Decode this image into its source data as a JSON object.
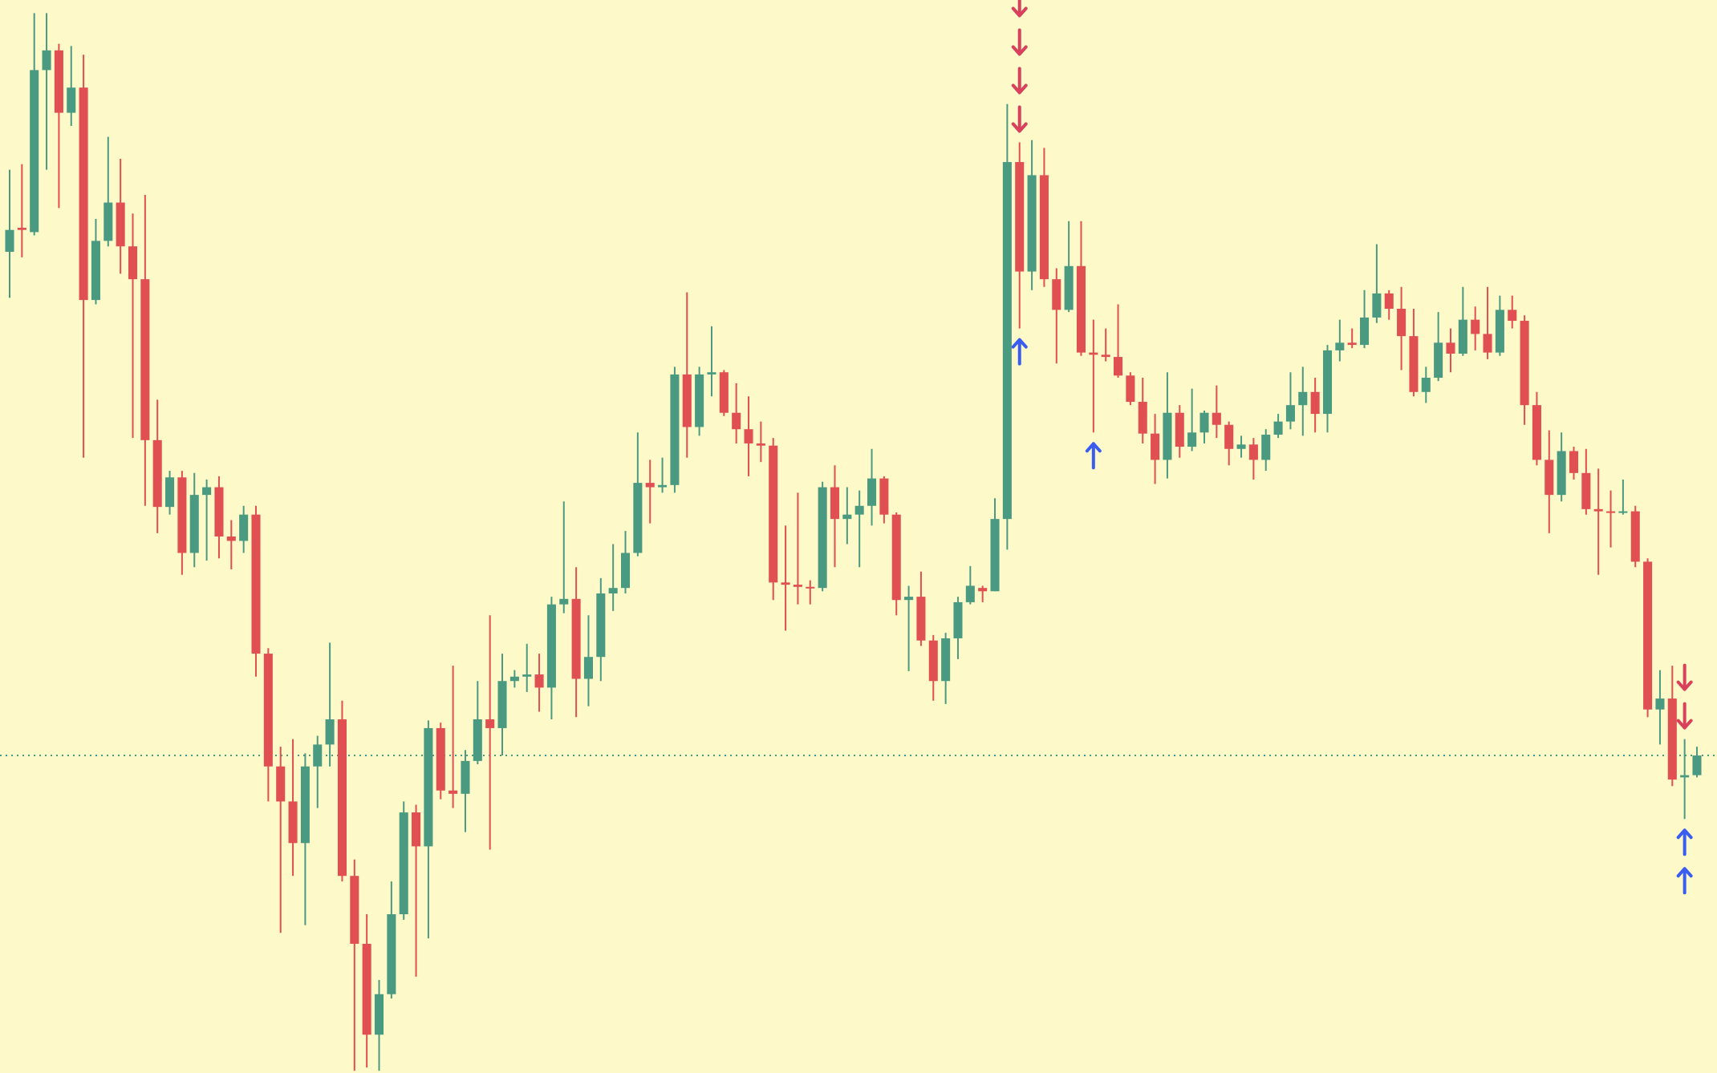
{
  "chart_data": {
    "type": "candlestick",
    "ylim": [
      0,
      980
    ],
    "up_color": "#4a9a82",
    "down_color": "#e04f52",
    "background": "#fdf9c8",
    "price_line": 290,
    "price_line_color": "#4a9a82",
    "open": [
      750,
      772,
      768,
      916,
      934,
      877,
      900,
      706,
      760,
      795,
      755,
      725,
      578,
      517,
      544,
      475,
      528,
      535,
      490,
      486,
      510,
      383,
      280,
      248,
      210,
      280,
      300,
      323,
      180,
      118,
      35,
      72,
      145,
      238,
      207,
      315,
      258,
      255,
      285,
      323,
      315,
      358,
      362,
      364,
      352,
      428,
      433,
      360,
      380,
      438,
      443,
      475,
      539,
      535,
      537,
      638,
      590,
      638,
      640,
      603,
      588,
      575,
      573,
      448,
      446,
      444,
      443,
      535,
      506,
      510,
      518,
      543,
      510,
      432,
      435,
      395,
      358,
      397,
      430,
      443,
      440,
      506,
      832,
      732,
      820,
      725,
      697,
      737,
      658,
      656,
      654,
      637,
      613,
      584,
      560,
      603,
      572,
      585,
      603,
      592,
      570,
      574,
      560,
      583,
      595,
      610,
      622,
      602,
      660,
      667,
      665,
      690,
      712,
      698,
      673,
      622,
      635,
      667,
      657,
      688,
      675,
      658,
      697,
      687,
      610,
      560,
      528,
      568,
      548,
      515,
      513,
      512,
      513,
      467,
      332,
      342,
      270,
      272
    ],
    "high": [
      825,
      830,
      968,
      968,
      940,
      938,
      930,
      780,
      855,
      835,
      785,
      802,
      615,
      550,
      550,
      548,
      542,
      545,
      505,
      518,
      518,
      388,
      298,
      305,
      292,
      308,
      393,
      340,
      195,
      145,
      85,
      175,
      248,
      245,
      322,
      320,
      372,
      295,
      358,
      418,
      383,
      368,
      392,
      383,
      435,
      522,
      462,
      418,
      452,
      483,
      495,
      585,
      560,
      562,
      645,
      713,
      645,
      682,
      642,
      630,
      618,
      595,
      580,
      500,
      530,
      450,
      540,
      555,
      535,
      532,
      570,
      545,
      512,
      445,
      458,
      400,
      402,
      435,
      463,
      445,
      525,
      885,
      850,
      852,
      845,
      735,
      778,
      778,
      688,
      680,
      702,
      640,
      635,
      602,
      640,
      610,
      625,
      605,
      628,
      595,
      582,
      580,
      588,
      602,
      640,
      645,
      635,
      665,
      688,
      680,
      715,
      757,
      715,
      718,
      698,
      645,
      695,
      680,
      718,
      700,
      718,
      710,
      710,
      692,
      622,
      587,
      585,
      572,
      570,
      552,
      532,
      542,
      518,
      470,
      368,
      372,
      305,
      298
    ],
    "low": [
      708,
      745,
      765,
      825,
      790,
      865,
      562,
      702,
      755,
      730,
      580,
      518,
      493,
      510,
      455,
      462,
      468,
      470,
      460,
      475,
      362,
      248,
      128,
      180,
      135,
      242,
      280,
      175,
      2,
      5,
      2,
      68,
      140,
      88,
      123,
      250,
      242,
      220,
      282,
      204,
      290,
      352,
      348,
      330,
      323,
      420,
      325,
      335,
      358,
      422,
      438,
      472,
      502,
      530,
      530,
      562,
      582,
      618,
      600,
      575,
      545,
      558,
      432,
      404,
      428,
      428,
      440,
      462,
      483,
      462,
      500,
      502,
      418,
      367,
      390,
      340,
      337,
      378,
      428,
      430,
      440,
      478,
      680,
      715,
      718,
      648,
      695,
      655,
      585,
      650,
      635,
      610,
      575,
      538,
      543,
      562,
      568,
      575,
      580,
      555,
      562,
      542,
      550,
      580,
      588,
      582,
      585,
      585,
      650,
      662,
      662,
      685,
      688,
      642,
      618,
      612,
      632,
      640,
      655,
      660,
      652,
      655,
      680,
      592,
      555,
      493,
      522,
      542,
      510,
      455,
      480,
      510,
      462,
      325,
      300,
      262,
      232,
      270
    ],
    "close": [
      770,
      770,
      916,
      934,
      877,
      900,
      706,
      760,
      795,
      755,
      725,
      578,
      517,
      544,
      475,
      528,
      535,
      490,
      486,
      510,
      383,
      280,
      248,
      210,
      280,
      300,
      323,
      180,
      118,
      35,
      72,
      145,
      238,
      207,
      315,
      258,
      255,
      285,
      323,
      315,
      358,
      362,
      364,
      352,
      428,
      433,
      360,
      380,
      438,
      443,
      475,
      539,
      535,
      537,
      638,
      590,
      638,
      640,
      603,
      588,
      575,
      573,
      448,
      446,
      444,
      443,
      535,
      506,
      510,
      518,
      543,
      510,
      432,
      435,
      395,
      358,
      397,
      430,
      445,
      440,
      506,
      832,
      732,
      820,
      725,
      697,
      737,
      658,
      656,
      654,
      637,
      613,
      584,
      560,
      603,
      572,
      585,
      603,
      592,
      570,
      574,
      560,
      583,
      595,
      610,
      622,
      602,
      660,
      667,
      665,
      690,
      712,
      698,
      673,
      622,
      635,
      667,
      657,
      688,
      675,
      658,
      697,
      687,
      610,
      560,
      528,
      568,
      548,
      515,
      513,
      512,
      513,
      467,
      332,
      342,
      268,
      272,
      290
    ],
    "signal_colors": {
      "up": "#3a5cf0",
      "down": "#d9405c"
    },
    "signals": [
      {
        "index": 82,
        "direction": "down",
        "count": 4
      },
      {
        "index": 82,
        "direction": "up",
        "count": 1
      },
      {
        "index": 88,
        "direction": "up",
        "count": 1
      },
      {
        "index": 136,
        "direction": "down",
        "count": 2
      },
      {
        "index": 136,
        "direction": "up",
        "count": 2
      }
    ]
  }
}
